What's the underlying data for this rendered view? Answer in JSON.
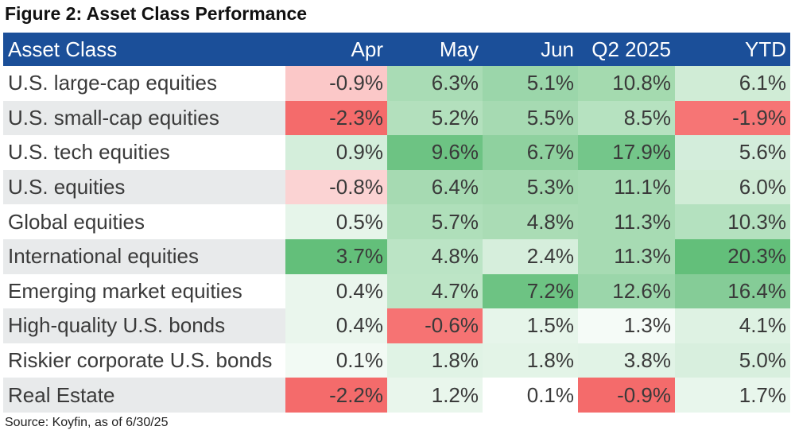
{
  "title": "Figure 2: Asset Class Performance",
  "source": "Source: Koyfin, as of 6/30/25",
  "chart_data": {
    "type": "table",
    "title": "Figure 2: Asset Class Performance",
    "columns": [
      "Asset Class",
      "Apr",
      "May",
      "Jun",
      "Q2 2025",
      "YTD"
    ],
    "rows": [
      {
        "name": "U.S. large-cap equities",
        "values": [
          "-0.9%",
          "6.3%",
          "5.1%",
          "10.8%",
          "6.1%"
        ],
        "colors": [
          "#fbc8c8",
          "#a9dcb5",
          "#9bd6aa",
          "#a4daaf",
          "#d0ecd6"
        ]
      },
      {
        "name": "U.S. small-cap equities",
        "values": [
          "-2.3%",
          "5.2%",
          "5.5%",
          "8.5%",
          "-1.9%"
        ],
        "colors": [
          "#f46b6b",
          "#b3e0bd",
          "#a6dab2",
          "#b6e2c0",
          "#f67575"
        ]
      },
      {
        "name": "U.S. tech equities",
        "values": [
          "0.9%",
          "9.6%",
          "6.7%",
          "17.9%",
          "5.6%"
        ],
        "colors": [
          "#d4eedb",
          "#6dc383",
          "#8fd19f",
          "#74c68a",
          "#d3eddb"
        ]
      },
      {
        "name": "U.S. equities",
        "values": [
          "-0.8%",
          "6.4%",
          "5.3%",
          "11.1%",
          "6.0%"
        ],
        "colors": [
          "#fbd3d3",
          "#a6dab2",
          "#a3d9af",
          "#a7dbb3",
          "#d0ecd6"
        ]
      },
      {
        "name": "Global equities",
        "values": [
          "0.5%",
          "5.7%",
          "4.8%",
          "11.3%",
          "10.3%"
        ],
        "colors": [
          "#e6f5ea",
          "#afdfba",
          "#aadcb5",
          "#a7dbb3",
          "#b4e1bf"
        ]
      },
      {
        "name": "International equities",
        "values": [
          "3.7%",
          "4.8%",
          "2.4%",
          "11.3%",
          "20.3%"
        ],
        "colors": [
          "#63bf7a",
          "#bbe4c5",
          "#d6eedc",
          "#a7dbb3",
          "#63bf7a"
        ]
      },
      {
        "name": "Emerging market equities",
        "values": [
          "0.4%",
          "4.7%",
          "7.2%",
          "12.6%",
          "16.4%"
        ],
        "colors": [
          "#eaf6ed",
          "#bde5c6",
          "#6dc383",
          "#9bd6aa",
          "#85cc97"
        ]
      },
      {
        "name": "High-quality U.S. bonds",
        "values": [
          "0.4%",
          "-0.6%",
          "1.5%",
          "1.3%",
          "4.1%"
        ],
        "colors": [
          "#eaf6ed",
          "#f67373",
          "#e6f5ea",
          "#f5fbf7",
          "#def2e3"
        ]
      },
      {
        "name": "Riskier corporate U.S. bonds",
        "values": [
          "0.1%",
          "1.8%",
          "1.8%",
          "3.8%",
          "5.0%"
        ],
        "colors": [
          "#f2faf4",
          "#e0f3e5",
          "#e3f4e7",
          "#e1f3e6",
          "#d8efde"
        ]
      },
      {
        "name": "Real Estate",
        "values": [
          "-2.2%",
          "1.2%",
          "0.1%",
          "-0.9%",
          "1.7%"
        ],
        "colors": [
          "#f46b6b",
          "#e9f6ec",
          "#ffffff",
          "#f46b6b",
          "#e8f6ec"
        ]
      }
    ]
  }
}
